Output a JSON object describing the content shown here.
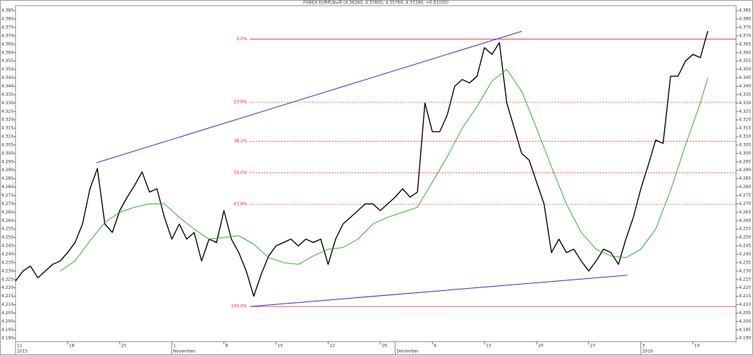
{
  "chart_data": {
    "type": "line",
    "title": "FOREX EURPLN=R (4.36260, 4.37600, 4.35760, 4.37290, +0.01030)",
    "xlim": [
      0,
      96.8
    ],
    "ylim": [
      4.188,
      4.388
    ],
    "xticks": [
      {
        "value": 0,
        "label": "11"
      },
      {
        "value": 7,
        "label": "18"
      },
      {
        "value": 14,
        "label": "25"
      },
      {
        "value": 21,
        "label": "1"
      },
      {
        "value": 28,
        "label": "8"
      },
      {
        "value": 35,
        "label": "15"
      },
      {
        "value": 42,
        "label": "22"
      },
      {
        "value": 49,
        "label": "29"
      },
      {
        "value": 56,
        "label": "6"
      },
      {
        "value": 63,
        "label": "13"
      },
      {
        "value": 70,
        "label": "20"
      },
      {
        "value": 77,
        "label": "27"
      },
      {
        "value": 84,
        "label": "3"
      },
      {
        "value": 91,
        "label": "10"
      }
    ],
    "month_labels": [
      {
        "value": 0,
        "label": "2015"
      },
      {
        "value": 21,
        "label": "November"
      },
      {
        "value": 51,
        "label": "December"
      },
      {
        "value": 84,
        "label": "2016"
      }
    ],
    "yticks": [
      {
        "value": 4.19,
        "label": "4.190"
      },
      {
        "value": 4.195,
        "label": "4.195"
      },
      {
        "value": 4.2,
        "label": "4.200"
      },
      {
        "value": 4.205,
        "label": "4.205"
      },
      {
        "value": 4.21,
        "label": "4.210"
      },
      {
        "value": 4.215,
        "label": "4.215"
      },
      {
        "value": 4.22,
        "label": "4.220"
      },
      {
        "value": 4.225,
        "label": "4.225"
      },
      {
        "value": 4.23,
        "label": "4.230"
      },
      {
        "value": 4.235,
        "label": "4.235"
      },
      {
        "value": 4.24,
        "label": "4.240"
      },
      {
        "value": 4.245,
        "label": "4.245"
      },
      {
        "value": 4.25,
        "label": "4.250"
      },
      {
        "value": 4.255,
        "label": "4.255"
      },
      {
        "value": 4.26,
        "label": "4.260"
      },
      {
        "value": 4.265,
        "label": "4.265"
      },
      {
        "value": 4.27,
        "label": "4.270"
      },
      {
        "value": 4.275,
        "label": "4.275"
      },
      {
        "value": 4.28,
        "label": "4.280"
      },
      {
        "value": 4.285,
        "label": "4.285"
      },
      {
        "value": 4.29,
        "label": "4.290"
      },
      {
        "value": 4.295,
        "label": "4.295"
      },
      {
        "value": 4.3,
        "label": "4.300"
      },
      {
        "value": 4.305,
        "label": "4.305"
      },
      {
        "value": 4.31,
        "label": "4.310"
      },
      {
        "value": 4.315,
        "label": "4.315"
      },
      {
        "value": 4.32,
        "label": "4.320"
      },
      {
        "value": 4.325,
        "label": "4.325"
      },
      {
        "value": 4.33,
        "label": "4.330"
      },
      {
        "value": 4.335,
        "label": "4.335"
      },
      {
        "value": 4.34,
        "label": "4.340"
      },
      {
        "value": 4.345,
        "label": "4.345"
      },
      {
        "value": 4.35,
        "label": "4.350"
      },
      {
        "value": 4.355,
        "label": "4.355"
      },
      {
        "value": 4.36,
        "label": "4.360"
      },
      {
        "value": 4.365,
        "label": "4.365"
      },
      {
        "value": 4.37,
        "label": "4.370"
      },
      {
        "value": 4.375,
        "label": "4.375"
      },
      {
        "value": 4.38,
        "label": "4.380"
      },
      {
        "value": 4.385,
        "label": "4.385"
      }
    ],
    "series": [
      {
        "color": "#000000",
        "x": [
          0,
          1,
          2,
          3,
          4,
          5,
          6,
          7,
          8,
          9,
          10,
          11,
          12,
          13,
          14,
          15,
          16,
          17,
          18,
          19,
          20,
          21,
          22,
          23,
          24,
          25,
          26,
          27,
          28,
          29,
          30,
          31,
          32,
          33,
          34,
          35,
          36,
          37,
          38,
          39,
          40,
          41,
          42,
          43,
          44,
          45,
          46,
          47,
          48,
          49,
          50,
          51,
          52,
          53,
          54,
          55,
          56,
          57,
          58,
          59,
          60,
          61,
          62,
          63,
          64,
          65,
          66,
          67,
          68,
          69,
          70,
          71,
          72,
          73,
          74,
          75,
          76,
          77,
          78,
          79,
          80,
          81,
          82,
          83,
          84,
          85,
          86,
          87,
          88,
          89,
          90,
          91,
          92,
          93
        ],
        "values": [
          4.224,
          4.23,
          4.233,
          4.226,
          4.23,
          4.234,
          4.236,
          4.241,
          4.247,
          4.258,
          4.279,
          4.291,
          4.258,
          4.253,
          4.266,
          4.274,
          4.281,
          4.289,
          4.277,
          4.279,
          4.262,
          4.249,
          4.258,
          4.249,
          4.253,
          4.236,
          4.249,
          4.247,
          4.266,
          4.249,
          4.241,
          4.23,
          4.215,
          4.228,
          4.239,
          4.245,
          4.247,
          4.249,
          4.245,
          4.249,
          4.247,
          4.249,
          4.234,
          4.249,
          4.258,
          4.262,
          4.266,
          4.27,
          4.27,
          4.266,
          4.27,
          4.274,
          4.279,
          4.274,
          4.277,
          4.33,
          4.313,
          4.313,
          4.323,
          4.34,
          4.344,
          4.342,
          4.346,
          4.363,
          4.359,
          4.366,
          4.33,
          4.315,
          4.3,
          4.296,
          4.283,
          4.27,
          4.241,
          4.249,
          4.241,
          4.243,
          4.236,
          4.23,
          4.236,
          4.243,
          4.241,
          4.234,
          4.249,
          4.262,
          4.279,
          4.293,
          4.308,
          4.306,
          4.346,
          4.346,
          4.355,
          4.359,
          4.357,
          4.3729
        ]
      },
      {
        "color": "#22a022",
        "x": [
          6,
          8,
          10,
          12,
          14,
          16,
          18,
          20,
          22,
          24,
          26,
          28,
          30,
          32,
          34,
          36,
          38,
          40,
          42,
          44,
          46,
          48,
          50,
          52,
          54,
          56,
          58,
          60,
          62,
          64,
          66,
          68,
          70,
          72,
          74,
          76,
          78,
          80,
          82,
          84,
          86,
          88,
          90,
          92,
          93
        ],
        "values": [
          4.23,
          4.236,
          4.248,
          4.259,
          4.265,
          4.268,
          4.27,
          4.27,
          4.262,
          4.255,
          4.249,
          4.25,
          4.251,
          4.246,
          4.238,
          4.235,
          4.234,
          4.239,
          4.243,
          4.244,
          4.249,
          4.258,
          4.262,
          4.265,
          4.268,
          4.283,
          4.298,
          4.315,
          4.328,
          4.343,
          4.35,
          4.337,
          4.315,
          4.292,
          4.27,
          4.253,
          4.243,
          4.239,
          4.238,
          4.243,
          4.255,
          4.278,
          4.305,
          4.33,
          4.345
        ]
      }
    ],
    "fib_start": 31.5,
    "fib_color": "#e02828",
    "fib_levels": [
      {
        "label": "0.0%",
        "value": 4.3681,
        "style": "solid"
      },
      {
        "label": "23.6%",
        "value": 4.3305,
        "style": "dotted"
      },
      {
        "label": "38.2%",
        "value": 4.3072,
        "style": "dotted"
      },
      {
        "label": "50.0%",
        "value": 4.2885,
        "style": "dotted"
      },
      {
        "label": "61.8%",
        "value": 4.2697,
        "style": "dotted"
      },
      {
        "label": "100.0%",
        "value": 4.2089,
        "style": "solid"
      }
    ],
    "trendlines": [
      {
        "color": "#2a2ae8",
        "x": [
          10.9,
          68.0
        ],
        "y": [
          4.2945,
          4.3727
        ]
      },
      {
        "color": "#2a2ae8",
        "x": [
          31.5,
          82.2
        ],
        "y": [
          4.2089,
          4.2275
        ]
      }
    ]
  }
}
